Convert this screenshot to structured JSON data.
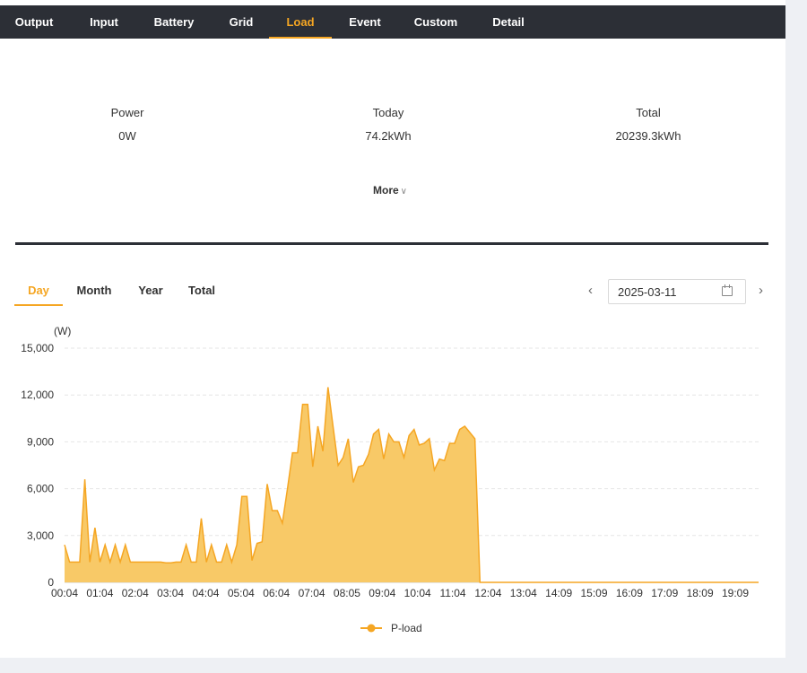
{
  "tabs": [
    {
      "label": "Output"
    },
    {
      "label": "Input"
    },
    {
      "label": "Battery"
    },
    {
      "label": "Grid"
    },
    {
      "label": "Load",
      "active": true
    },
    {
      "label": "Event"
    },
    {
      "label": "Custom"
    },
    {
      "label": "Detail"
    }
  ],
  "stats": {
    "power": {
      "label": "Power",
      "value": "0W"
    },
    "today": {
      "label": "Today",
      "value": "74.2kWh"
    },
    "total": {
      "label": "Total",
      "value": "20239.3kWh"
    }
  },
  "more_label": "More",
  "period_tabs": [
    {
      "label": "Day",
      "active": true
    },
    {
      "label": "Month"
    },
    {
      "label": "Year"
    },
    {
      "label": "Total"
    }
  ],
  "date_value": "2025-03-11",
  "colors": {
    "accent": "#f5a623",
    "area_fill": "#f8c967",
    "nav_bg": "#2c2f36"
  },
  "chart_data": {
    "type": "area",
    "ylabel": "(W)",
    "ylim": [
      0,
      15000
    ],
    "y_ticks": [
      "0",
      "3,000",
      "6,000",
      "9,000",
      "12,000",
      "15,000"
    ],
    "x_ticks": [
      "00:04",
      "01:04",
      "02:04",
      "03:04",
      "04:04",
      "05:04",
      "06:04",
      "07:04",
      "08:05",
      "09:04",
      "10:04",
      "11:04",
      "12:04",
      "13:04",
      "14:09",
      "15:09",
      "16:09",
      "17:09",
      "18:09",
      "19:09"
    ],
    "legend": "top-bottom",
    "series": [
      {
        "name": "P-load",
        "values": [
          2400,
          1300,
          1300,
          1300,
          6600,
          1300,
          3500,
          1300,
          2400,
          1300,
          2400,
          1300,
          2400,
          1300,
          1300,
          1300,
          1300,
          1300,
          1300,
          1300,
          1250,
          1250,
          1300,
          1300,
          2400,
          1300,
          1300,
          4100,
          1300,
          2400,
          1300,
          1300,
          2400,
          1300,
          2400,
          5500,
          5500,
          1400,
          2500,
          2600,
          6300,
          4600,
          4600,
          3800,
          6000,
          8300,
          8300,
          11400,
          11400,
          7400,
          10000,
          8400,
          12500,
          10000,
          7500,
          8000,
          9200,
          6400,
          7400,
          7500,
          8200,
          9500,
          9800,
          7900,
          9500,
          9000,
          9000,
          8000,
          9400,
          9800,
          8800,
          8900,
          9200,
          7200,
          7900,
          7800,
          8900,
          8900,
          9800,
          10000,
          9600,
          9200,
          0,
          0,
          0,
          0,
          0,
          0,
          0,
          0,
          0,
          0,
          0,
          0,
          0,
          0,
          0,
          0,
          0,
          0,
          0,
          0,
          0,
          0,
          0,
          0,
          0,
          0,
          0,
          0,
          0,
          0,
          0,
          0,
          0,
          0,
          0,
          0,
          0,
          0,
          0,
          0,
          0,
          0,
          0,
          0,
          0,
          0,
          0,
          0,
          0,
          0,
          0,
          0,
          0,
          0,
          0,
          0
        ]
      }
    ]
  }
}
